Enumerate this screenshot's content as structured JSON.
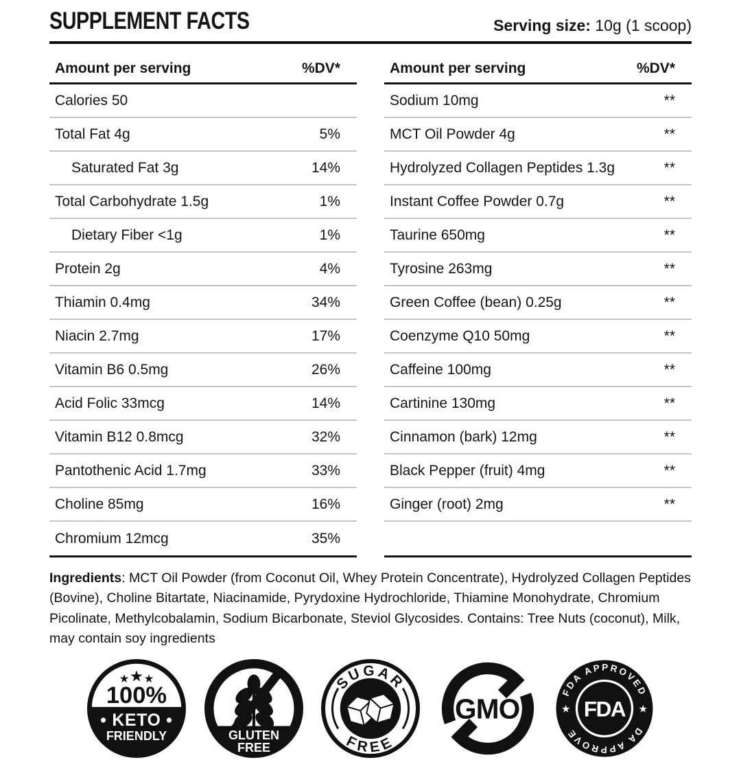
{
  "header": {
    "title": "SUPPLEMENT FACTS",
    "serving_label": "Serving size:",
    "serving_value": " 10g (1 scoop)"
  },
  "table": {
    "amount_header": "Amount per serving",
    "dv_header": "%DV*",
    "left_rows": [
      {
        "label": "Calories 50",
        "dv": "",
        "indent": false
      },
      {
        "label": "Total Fat 4g",
        "dv": "5%",
        "indent": false
      },
      {
        "label": "Saturated Fat 3g",
        "dv": "14%",
        "indent": true
      },
      {
        "label": "Total Carbohydrate 1.5g",
        "dv": "1%",
        "indent": false
      },
      {
        "label": "Dietary Fiber <1g",
        "dv": "1%",
        "indent": true
      },
      {
        "label": "Protein 2g",
        "dv": "4%",
        "indent": false
      },
      {
        "label": "Thiamin 0.4mg",
        "dv": "34%",
        "indent": false
      },
      {
        "label": "Niacin 2.7mg",
        "dv": "17%",
        "indent": false
      },
      {
        "label": "Vitamin B6 0.5mg",
        "dv": "26%",
        "indent": false
      },
      {
        "label": "Acid Folic 33mcg",
        "dv": "14%",
        "indent": false
      },
      {
        "label": "Vitamin B12 0.8mcg",
        "dv": "32%",
        "indent": false
      },
      {
        "label": "Pantothenic Acid 1.7mg",
        "dv": "33%",
        "indent": false
      },
      {
        "label": "Choline 85mg",
        "dv": "16%",
        "indent": false
      },
      {
        "label": "Chromium 12mcg",
        "dv": "35%",
        "indent": false
      }
    ],
    "right_rows": [
      {
        "label": "Sodium 10mg",
        "dv": "**",
        "indent": false
      },
      {
        "label": "MCT Oil Powder 4g",
        "dv": "**",
        "indent": false
      },
      {
        "label": "Hydrolyzed Collagen Peptides 1.3g",
        "dv": "**",
        "indent": false
      },
      {
        "label": "Instant Coffee Powder 0.7g",
        "dv": "**",
        "indent": false
      },
      {
        "label": "Taurine 650mg",
        "dv": "**",
        "indent": false
      },
      {
        "label": "Tyrosine 263mg",
        "dv": "**",
        "indent": false
      },
      {
        "label": "Green Coffee (bean) 0.25g",
        "dv": "**",
        "indent": false
      },
      {
        "label": "Coenzyme Q10 50mg",
        "dv": "**",
        "indent": false
      },
      {
        "label": "Caffeine 100mg",
        "dv": "**",
        "indent": false
      },
      {
        "label": "Cartinine 130mg",
        "dv": "**",
        "indent": false
      },
      {
        "label": "Cinnamon (bark) 12mg",
        "dv": "**",
        "indent": false
      },
      {
        "label": "Black Pepper (fruit) 4mg",
        "dv": "**",
        "indent": false
      },
      {
        "label": "Ginger (root) 2mg",
        "dv": "**",
        "indent": false
      }
    ]
  },
  "ingredients": {
    "label": "Ingredients",
    "text": ": MCT Oil Powder (from Coconut Oil, Whey Protein Concentrate), Hydrolyzed Collagen Peptides (Bovine), Choline Bitartate, Niacinamide, Pyrydoxine Hydrochloride, Thiamine Monohydrate, Chromium Picolinate, Methylcobalamin, Sodium Bicarbonate, Steviol Glycosides. Contains: Tree Nuts (coconut), Milk, may contain soy ingredients"
  },
  "badges": [
    {
      "id": "keto",
      "star": "★",
      "percent": "100%",
      "keto": "• KETO •",
      "friendly": "FRIENDLY"
    },
    {
      "id": "gluten-free",
      "line1": "GLUTEN",
      "line2": "FREE"
    },
    {
      "id": "sugar-free",
      "top": "SUGAR",
      "bottom": "FREE"
    },
    {
      "id": "non-gmo",
      "label": "GMO"
    },
    {
      "id": "fda",
      "arc_top": "FDA APPROVED",
      "arc_bottom": "FDA APPROVED",
      "center": "FDA",
      "star": "★"
    }
  ],
  "colors": {
    "ink": "#111111",
    "divider": "#c3c3c3",
    "background": "#ffffff"
  }
}
